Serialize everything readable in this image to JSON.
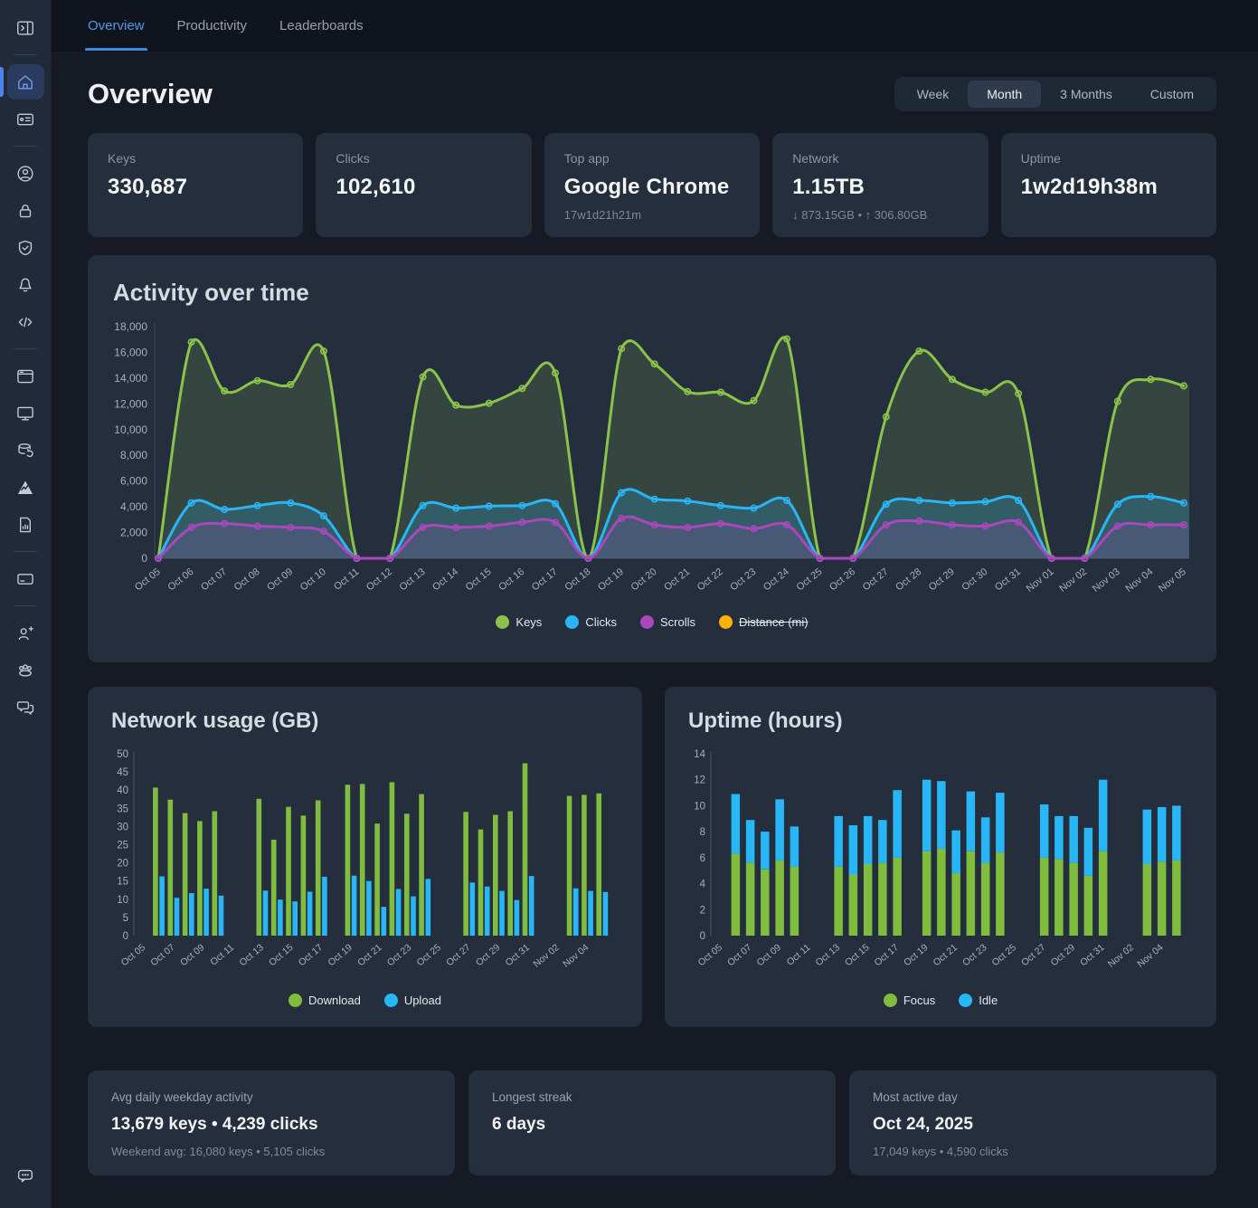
{
  "sidebar": {
    "active_item": "home",
    "items": [
      "sidebar-toggle",
      "home",
      "id-card",
      "account",
      "privacy",
      "security",
      "notifications",
      "developer",
      "applications",
      "computers",
      "backup",
      "milestones",
      "reports",
      "subscription",
      "invite-friends",
      "teams",
      "messages",
      "feedback"
    ]
  },
  "tabs": [
    {
      "label": "Overview",
      "active": true
    },
    {
      "label": "Productivity",
      "active": false
    },
    {
      "label": "Leaderboards",
      "active": false
    }
  ],
  "page": {
    "title": "Overview"
  },
  "time_range": {
    "options": [
      "Week",
      "Month",
      "3 Months",
      "Custom"
    ],
    "selected": "Month"
  },
  "stats": [
    {
      "label": "Keys",
      "value": "330,687"
    },
    {
      "label": "Clicks",
      "value": "102,610"
    },
    {
      "label": "Top app",
      "value": "Google Chrome",
      "sub": "17w1d21h21m"
    },
    {
      "label": "Network",
      "value": "1.15TB",
      "sub": "↓ 873.15GB • ↑ 306.80GB"
    },
    {
      "label": "Uptime",
      "value": "1w2d19h38m"
    }
  ],
  "chart_data": [
    {
      "id": "activity",
      "type": "line",
      "title": "Activity over time",
      "x": [
        "Oct 05",
        "Oct 06",
        "Oct 07",
        "Oct 08",
        "Oct 09",
        "Oct 10",
        "Oct 11",
        "Oct 12",
        "Oct 13",
        "Oct 14",
        "Oct 15",
        "Oct 16",
        "Oct 17",
        "Oct 18",
        "Oct 19",
        "Oct 20",
        "Oct 21",
        "Oct 22",
        "Oct 23",
        "Oct 24",
        "Oct 25",
        "Oct 26",
        "Oct 27",
        "Oct 28",
        "Oct 29",
        "Oct 30",
        "Oct 31",
        "Nov 01",
        "Nov 02",
        "Nov 03",
        "Nov 04",
        "Nov 05"
      ],
      "ylim": [
        0,
        18000
      ],
      "ytick": 2000,
      "legend_position": "bottom",
      "grid": false,
      "series": [
        {
          "name": "Keys",
          "color": "#8bc34a",
          "values": [
            0,
            16800,
            13000,
            13800,
            13500,
            16100,
            0,
            0,
            14100,
            11900,
            12050,
            13200,
            14400,
            0,
            16300,
            15100,
            12950,
            12900,
            12250,
            17049,
            0,
            0,
            11000,
            16100,
            13900,
            12900,
            12800,
            0,
            0,
            12200,
            13900,
            13400
          ]
        },
        {
          "name": "Clicks",
          "color": "#29b6f6",
          "values": [
            0,
            4300,
            3800,
            4100,
            4300,
            3300,
            0,
            0,
            4100,
            3900,
            4050,
            4100,
            4250,
            0,
            5100,
            4600,
            4450,
            4100,
            3900,
            4500,
            0,
            0,
            4200,
            4500,
            4300,
            4400,
            4500,
            0,
            0,
            4200,
            4800,
            4300
          ]
        },
        {
          "name": "Scrolls",
          "color": "#ab47bc",
          "values": [
            0,
            2400,
            2700,
            2500,
            2400,
            2100,
            0,
            0,
            2400,
            2400,
            2500,
            2800,
            2800,
            0,
            3100,
            2600,
            2400,
            2700,
            2300,
            2600,
            0,
            0,
            2600,
            2900,
            2600,
            2500,
            2800,
            0,
            0,
            2500,
            2600,
            2600
          ]
        },
        {
          "name": "Distance (mi)",
          "color": "#ffb300",
          "disabled": true,
          "values": []
        }
      ]
    },
    {
      "id": "network",
      "type": "bar",
      "mode": "grouped",
      "title": "Network usage (GB)",
      "x": [
        "Oct 05",
        "Oct 06",
        "Oct 07",
        "Oct 08",
        "Oct 09",
        "Oct 10",
        "Oct 11",
        "Oct 12",
        "Oct 13",
        "Oct 14",
        "Oct 15",
        "Oct 16",
        "Oct 17",
        "Oct 18",
        "Oct 19",
        "Oct 20",
        "Oct 21",
        "Oct 22",
        "Oct 23",
        "Oct 24",
        "Oct 25",
        "Oct 26",
        "Oct 27",
        "Oct 28",
        "Oct 29",
        "Oct 30",
        "Oct 31",
        "Nov 01",
        "Nov 02",
        "Nov 03",
        "Nov 04",
        "Nov 05"
      ],
      "xtick_every": 2,
      "ylim": [
        0,
        50
      ],
      "ytick": 5,
      "legend_position": "bottom",
      "grid": false,
      "series": [
        {
          "name": "Download",
          "color": "#80bd3f",
          "values": [
            0,
            40.7,
            37.4,
            33.7,
            31.5,
            34.2,
            0,
            0,
            37.6,
            26.4,
            35.4,
            33.0,
            37.2,
            0,
            41.5,
            41.7,
            30.8,
            42.2,
            33.5,
            38.9,
            0,
            0,
            34.0,
            29.2,
            33.2,
            34.2,
            47.4,
            0,
            0,
            38.4,
            38.7,
            39.1
          ]
        },
        {
          "name": "Upload",
          "color": "#29b6f6",
          "values": [
            0,
            16.3,
            10.4,
            11.7,
            12.9,
            11.0,
            0,
            0,
            12.4,
            9.9,
            9.4,
            12.1,
            16.2,
            0,
            16.5,
            15.0,
            7.9,
            12.8,
            10.8,
            15.6,
            0,
            0,
            14.6,
            13.5,
            12.3,
            9.8,
            16.4,
            0,
            0,
            13.0,
            12.3,
            12.0
          ]
        }
      ]
    },
    {
      "id": "uptime",
      "type": "bar",
      "mode": "stacked",
      "title": "Uptime (hours)",
      "x": [
        "Oct 05",
        "Oct 06",
        "Oct 07",
        "Oct 08",
        "Oct 09",
        "Oct 10",
        "Oct 11",
        "Oct 12",
        "Oct 13",
        "Oct 14",
        "Oct 15",
        "Oct 16",
        "Oct 17",
        "Oct 18",
        "Oct 19",
        "Oct 20",
        "Oct 21",
        "Oct 22",
        "Oct 23",
        "Oct 24",
        "Oct 25",
        "Oct 26",
        "Oct 27",
        "Oct 28",
        "Oct 29",
        "Oct 30",
        "Oct 31",
        "Nov 01",
        "Nov 02",
        "Nov 03",
        "Nov 04",
        "Nov 05"
      ],
      "xtick_every": 2,
      "ylim": [
        0,
        14
      ],
      "ytick": 2,
      "legend_position": "bottom",
      "grid": false,
      "series": [
        {
          "name": "Focus",
          "color": "#80bd3f",
          "values": [
            0,
            6.3,
            5.6,
            5.1,
            5.8,
            5.3,
            0,
            0,
            5.3,
            4.7,
            5.5,
            5.6,
            6.0,
            0,
            6.5,
            6.7,
            4.8,
            6.5,
            5.6,
            6.4,
            0,
            0,
            6.0,
            5.9,
            5.6,
            4.6,
            6.5,
            0,
            0,
            5.5,
            5.7,
            5.8
          ]
        },
        {
          "name": "Idle",
          "color": "#29b6f6",
          "values": [
            0,
            4.6,
            3.3,
            2.9,
            4.7,
            3.1,
            0,
            0,
            3.9,
            3.8,
            3.7,
            3.3,
            5.2,
            0,
            5.5,
            5.2,
            3.3,
            4.6,
            3.5,
            4.6,
            0,
            0,
            4.1,
            3.3,
            3.6,
            3.7,
            5.5,
            0,
            0,
            4.2,
            4.2,
            4.2
          ]
        }
      ]
    }
  ],
  "summary": [
    {
      "label": "Avg daily weekday activity",
      "value": "13,679 keys • 4,239 clicks",
      "sub": "Weekend avg: 16,080 keys • 5,105 clicks"
    },
    {
      "label": "Longest streak",
      "value": "6 days",
      "sub": ""
    },
    {
      "label": "Most active day",
      "value": "Oct 24, 2025",
      "sub": "17,049 keys • 4,590 clicks"
    }
  ]
}
